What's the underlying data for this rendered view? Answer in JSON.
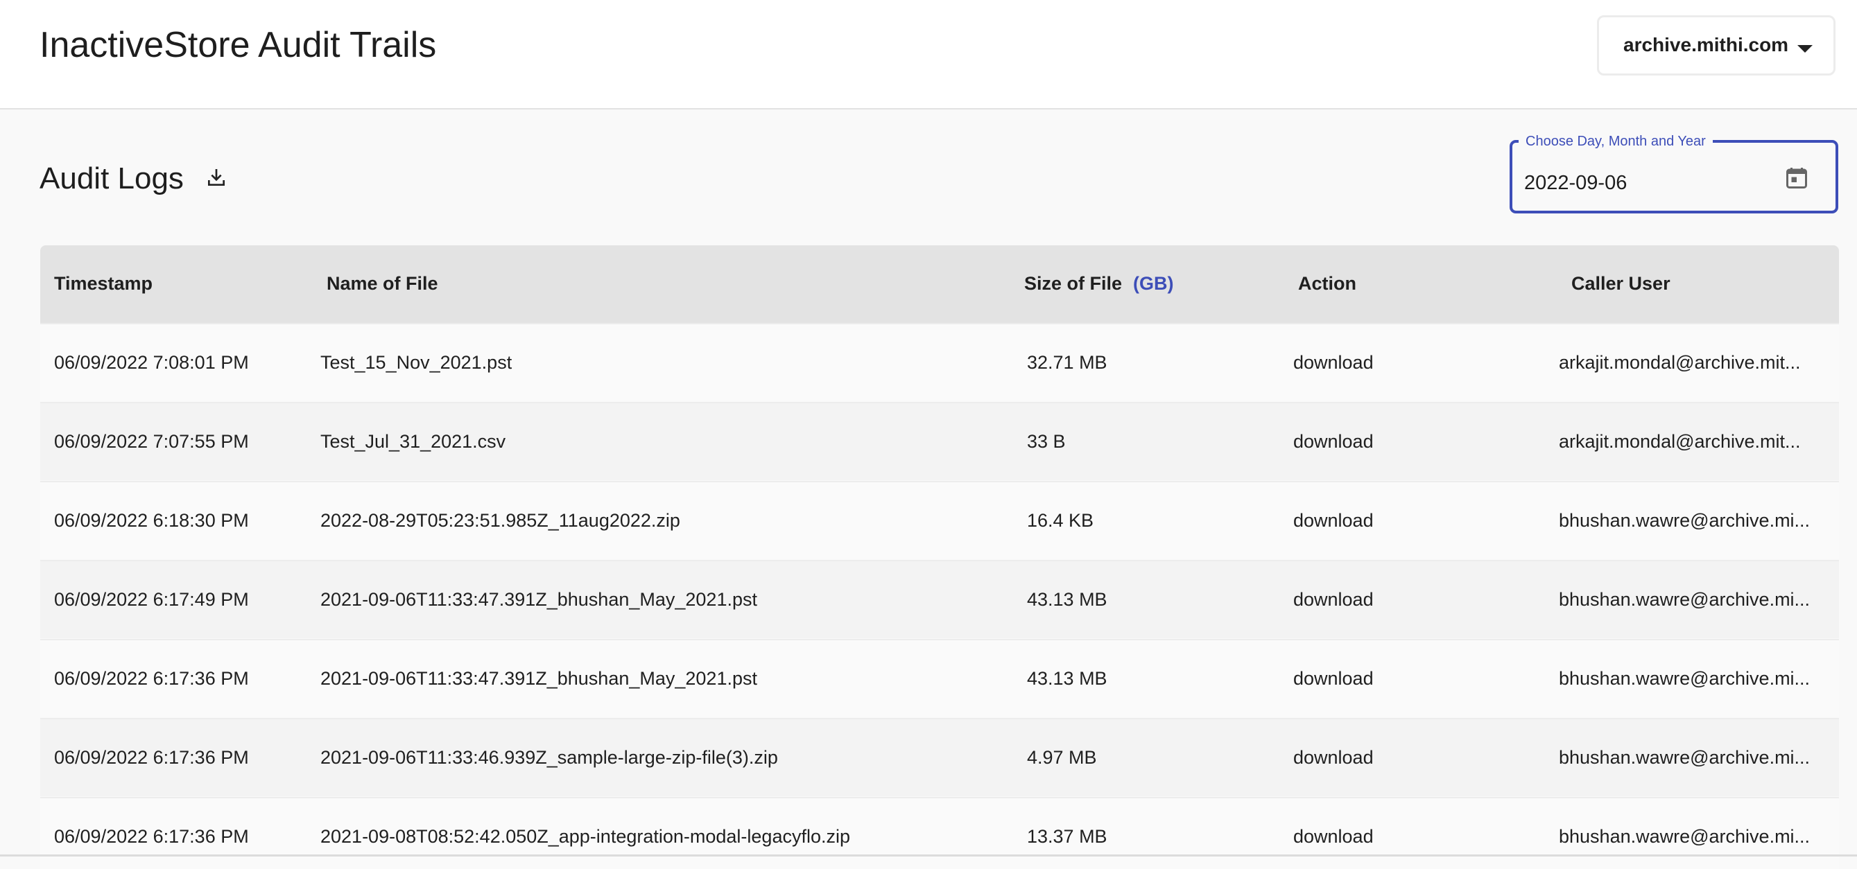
{
  "header": {
    "title": "InactiveStore Audit Trails",
    "domain_select": {
      "value": "archive.mithi.com",
      "icon": "caret-down-icon"
    }
  },
  "section": {
    "title": "Audit Logs",
    "download_icon": "download-icon"
  },
  "date_picker": {
    "label": "Choose Day, Month and Year",
    "value": "2022-09-06",
    "icon": "calendar-icon"
  },
  "colors": {
    "accent": "#3d4eb8",
    "header_row": "#e3e3e3"
  },
  "table": {
    "columns": [
      "Timestamp",
      "Name of File",
      "Size of File",
      "Action",
      "Caller User"
    ],
    "size_unit": "(GB)",
    "rows": [
      [
        "06/09/2022 7:08:01 PM",
        "Test_15_Nov_2021.pst",
        "32.71 MB",
        "download",
        "arkajit.mondal@archive.mit..."
      ],
      [
        "06/09/2022 7:07:55 PM",
        "Test_Jul_31_2021.csv",
        "33 B",
        "download",
        "arkajit.mondal@archive.mit..."
      ],
      [
        "06/09/2022 6:18:30 PM",
        "2022-08-29T05:23:51.985Z_11aug2022.zip",
        "16.4 KB",
        "download",
        "bhushan.wawre@archive.mi..."
      ],
      [
        "06/09/2022 6:17:49 PM",
        "2021-09-06T11:33:47.391Z_bhushan_May_2021.pst",
        "43.13 MB",
        "download",
        "bhushan.wawre@archive.mi..."
      ],
      [
        "06/09/2022 6:17:36 PM",
        "2021-09-06T11:33:47.391Z_bhushan_May_2021.pst",
        "43.13 MB",
        "download",
        "bhushan.wawre@archive.mi..."
      ],
      [
        "06/09/2022 6:17:36 PM",
        "2021-09-06T11:33:46.939Z_sample-large-zip-file(3).zip",
        "4.97 MB",
        "download",
        "bhushan.wawre@archive.mi..."
      ],
      [
        "06/09/2022 6:17:36 PM",
        "2021-09-08T08:52:42.050Z_app-integration-modal-legacyflo.zip",
        "13.37 MB",
        "download",
        "bhushan.wawre@archive.mi..."
      ]
    ]
  }
}
